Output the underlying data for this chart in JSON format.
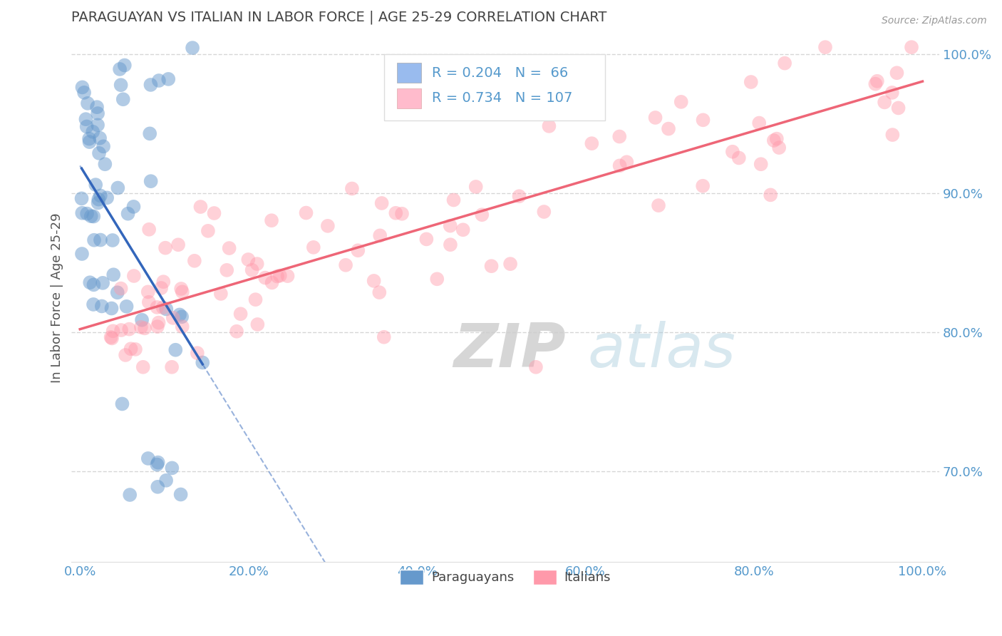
{
  "title": "PARAGUAYAN VS ITALIAN IN LABOR FORCE | AGE 25-29 CORRELATION CHART",
  "source_text": "Source: ZipAtlas.com",
  "ylabel": "In Labor Force | Age 25-29",
  "xlim": [
    -0.01,
    1.02
  ],
  "ylim": [
    0.635,
    1.015
  ],
  "ytick_labels": [
    "70.0%",
    "80.0%",
    "90.0%",
    "100.0%"
  ],
  "ytick_values": [
    0.7,
    0.8,
    0.9,
    1.0
  ],
  "xtick_labels": [
    "0.0%",
    "20.0%",
    "40.0%",
    "60.0%",
    "80.0%",
    "100.0%"
  ],
  "xtick_values": [
    0.0,
    0.2,
    0.4,
    0.6,
    0.8,
    1.0
  ],
  "blue_color": "#6699CC",
  "pink_color": "#FF99AA",
  "blue_line_color": "#3366BB",
  "pink_line_color": "#EE6677",
  "legend_blue_color": "#99BBEE",
  "legend_pink_color": "#FFBBCC",
  "R_blue": 0.204,
  "N_blue": 66,
  "R_pink": 0.734,
  "N_pink": 107,
  "legend_label_blue": "Paraguayans",
  "legend_label_pink": "Italians",
  "title_color": "#444444",
  "tick_color": "#5599CC",
  "ylabel_color": "#555555",
  "grid_color": "#CCCCCC",
  "source_color": "#999999"
}
